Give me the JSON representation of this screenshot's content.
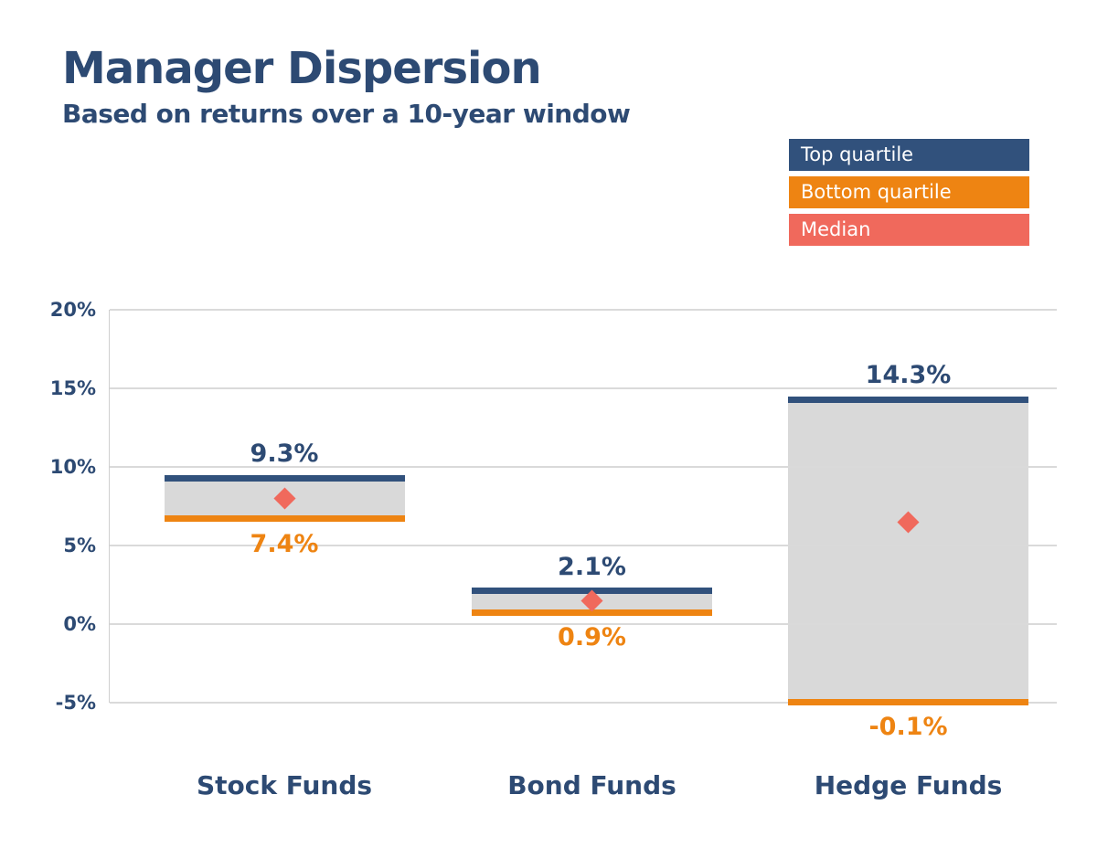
{
  "header": {
    "title": "Manager Dispersion",
    "subtitle": "Based on returns over a 10-year window"
  },
  "legend": [
    {
      "label": "Top quartile",
      "color": "#31517c"
    },
    {
      "label": "Bottom quartile",
      "color": "#ee8412"
    },
    {
      "label": "Median",
      "color": "#f0695c"
    }
  ],
  "colors": {
    "navy": "#31517c",
    "navy_text": "#2d4a73",
    "orange": "#ee8412",
    "coral": "#f0695c",
    "bar_gray": "#d9d9d9",
    "gridline": "#dadada"
  },
  "chart_data": {
    "type": "bar",
    "title": "Manager Dispersion",
    "subtitle": "Based on returns over a 10-year window",
    "categories": [
      "Stock Funds",
      "Bond Funds",
      "Hedge Funds"
    ],
    "series": [
      {
        "name": "Top quartile",
        "values": [
          9.3,
          2.1,
          14.3
        ]
      },
      {
        "name": "Bottom quartile",
        "values": [
          7.4,
          0.9,
          -0.1
        ]
      },
      {
        "name": "Median",
        "values": [
          8.0,
          1.5,
          6.5
        ]
      }
    ],
    "value_labels": {
      "top": [
        "9.3%",
        "2.1%",
        "14.3%"
      ],
      "bottom": [
        "7.4%",
        "0.9%",
        "-0.1%"
      ]
    },
    "ylim": [
      -5,
      20
    ],
    "yticks": [
      20,
      15,
      10,
      5,
      0,
      -5
    ],
    "ytick_labels": [
      "20%",
      "15%",
      "10%",
      "5%",
      "0%",
      "-5%"
    ],
    "grid": "horizontal",
    "legend_position": "top-right",
    "visual_extents_pct": {
      "top": [
        9.3,
        2.1,
        14.3
      ],
      "bottom": [
        6.7,
        0.75,
        -4.95
      ],
      "median": [
        8.0,
        1.5,
        6.5
      ]
    }
  }
}
